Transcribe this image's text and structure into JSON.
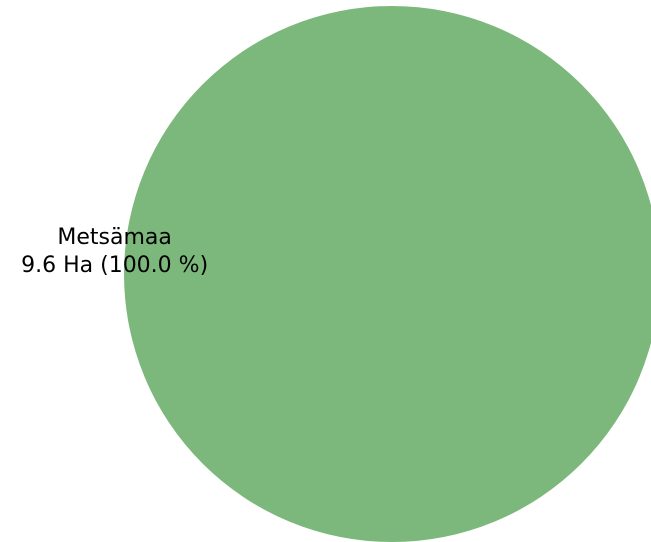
{
  "chart_data": {
    "type": "pie",
    "title": "",
    "slices": [
      {
        "label": "Metsämaa",
        "value": 9.6,
        "unit": "Ha",
        "percent": 100.0,
        "value_label": "9.6 Ha (100.0 %)",
        "color": "#7cb87c"
      }
    ]
  }
}
